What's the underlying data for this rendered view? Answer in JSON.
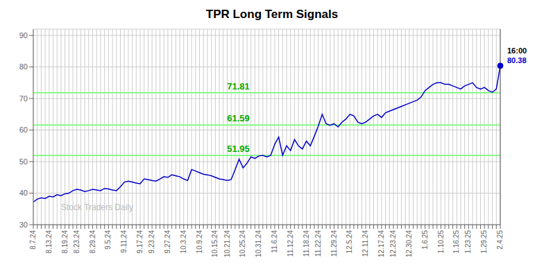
{
  "chart_data": {
    "type": "line",
    "title": "TPR Long Term Signals",
    "categories": [
      "8.7.24",
      null,
      null,
      null,
      "8.13.24",
      null,
      null,
      null,
      "8.19.24",
      null,
      null,
      "8.23.24",
      null,
      null,
      null,
      "8.29.24",
      null,
      null,
      null,
      "9.5.24",
      null,
      null,
      null,
      "9.11.24",
      null,
      null,
      null,
      "9.17.24",
      null,
      null,
      "9.23.24",
      null,
      null,
      null,
      "9.27.24",
      null,
      null,
      null,
      "10.3.24",
      null,
      null,
      null,
      "10.9.24",
      null,
      null,
      null,
      "10.15.24",
      null,
      null,
      "10.21.24",
      null,
      null,
      null,
      "10.25.24",
      null,
      null,
      null,
      "10.31.24",
      null,
      null,
      null,
      "11.6.24",
      null,
      null,
      null,
      "11.12.24",
      null,
      null,
      null,
      "11.18.24",
      null,
      null,
      "11.22.24",
      null,
      null,
      null,
      "11.29.24",
      null,
      null,
      null,
      "12.5.24",
      null,
      null,
      null,
      "12.11.24",
      null,
      null,
      null,
      "12.17.24",
      null,
      null,
      "12.23.24",
      null,
      null,
      null,
      "12.30.24",
      null,
      null,
      null,
      "1.6.25",
      null,
      null,
      null,
      "1.10.25",
      null,
      null,
      null,
      "1.16.25",
      null,
      null,
      "1.23.25",
      null,
      null,
      null,
      "1.29.25",
      null,
      null,
      null,
      "2.4.25"
    ],
    "series": [
      {
        "name": "TPR",
        "color": "#0000cc",
        "values": [
          37.2,
          38.1,
          38.5,
          38.3,
          39.0,
          38.8,
          39.5,
          39.2,
          39.8,
          40.0,
          40.8,
          41.2,
          41.0,
          40.5,
          40.8,
          41.2,
          41.0,
          40.8,
          41.5,
          41.3,
          41.0,
          40.8,
          42.0,
          43.5,
          43.8,
          43.5,
          43.2,
          43.0,
          44.5,
          44.3,
          44.0,
          43.8,
          44.5,
          45.2,
          45.0,
          45.8,
          45.5,
          45.2,
          44.5,
          44.0,
          47.5,
          47.0,
          46.5,
          46.0,
          45.8,
          45.5,
          45.0,
          44.5,
          44.3,
          44.0,
          44.3,
          47.5,
          50.8,
          48.0,
          49.5,
          51.5,
          51.0,
          51.8,
          52.0,
          51.5,
          52.0,
          55.5,
          57.8,
          52.0,
          55.0,
          53.5,
          57.0,
          55.0,
          54.0,
          56.5,
          55.0,
          58.0,
          61.2,
          65.0,
          62.0,
          61.5,
          62.0,
          61.0,
          62.5,
          63.5,
          65.0,
          64.5,
          62.5,
          62.0,
          62.5,
          63.5,
          64.5,
          65.0,
          64.0,
          65.5,
          66.0,
          66.5,
          67.0,
          67.5,
          68.0,
          68.5,
          69.0,
          69.5,
          70.5,
          72.5,
          73.5,
          74.5,
          75.0,
          75.0,
          74.5,
          74.5,
          74.0,
          73.5,
          73.0,
          74.0,
          74.5,
          75.0,
          73.5,
          73.0,
          73.5,
          72.5,
          72.0,
          73.0,
          80.38
        ]
      }
    ],
    "ylim": [
      30,
      92
    ],
    "yticks": [
      30,
      40,
      50,
      60,
      70,
      80,
      90
    ],
    "grid": true,
    "reference_lines": [
      {
        "value": 51.95,
        "label": "51.95",
        "color": "#66ff66",
        "label_color": "#00aa00"
      },
      {
        "value": 61.59,
        "label": "61.59",
        "color": "#66ff66",
        "label_color": "#00aa00"
      },
      {
        "value": 71.81,
        "label": "71.81",
        "color": "#66ff66",
        "label_color": "#00aa00"
      }
    ],
    "last_point": {
      "line_color": "#555555",
      "dot_color": "#0000cc",
      "annotations": [
        {
          "text": "16:00",
          "color": "#000000"
        },
        {
          "text": "80.38",
          "color": "#0000cc"
        }
      ]
    },
    "watermark": {
      "text": "Stock Traders Daily",
      "color": "#bbbbbb"
    }
  }
}
